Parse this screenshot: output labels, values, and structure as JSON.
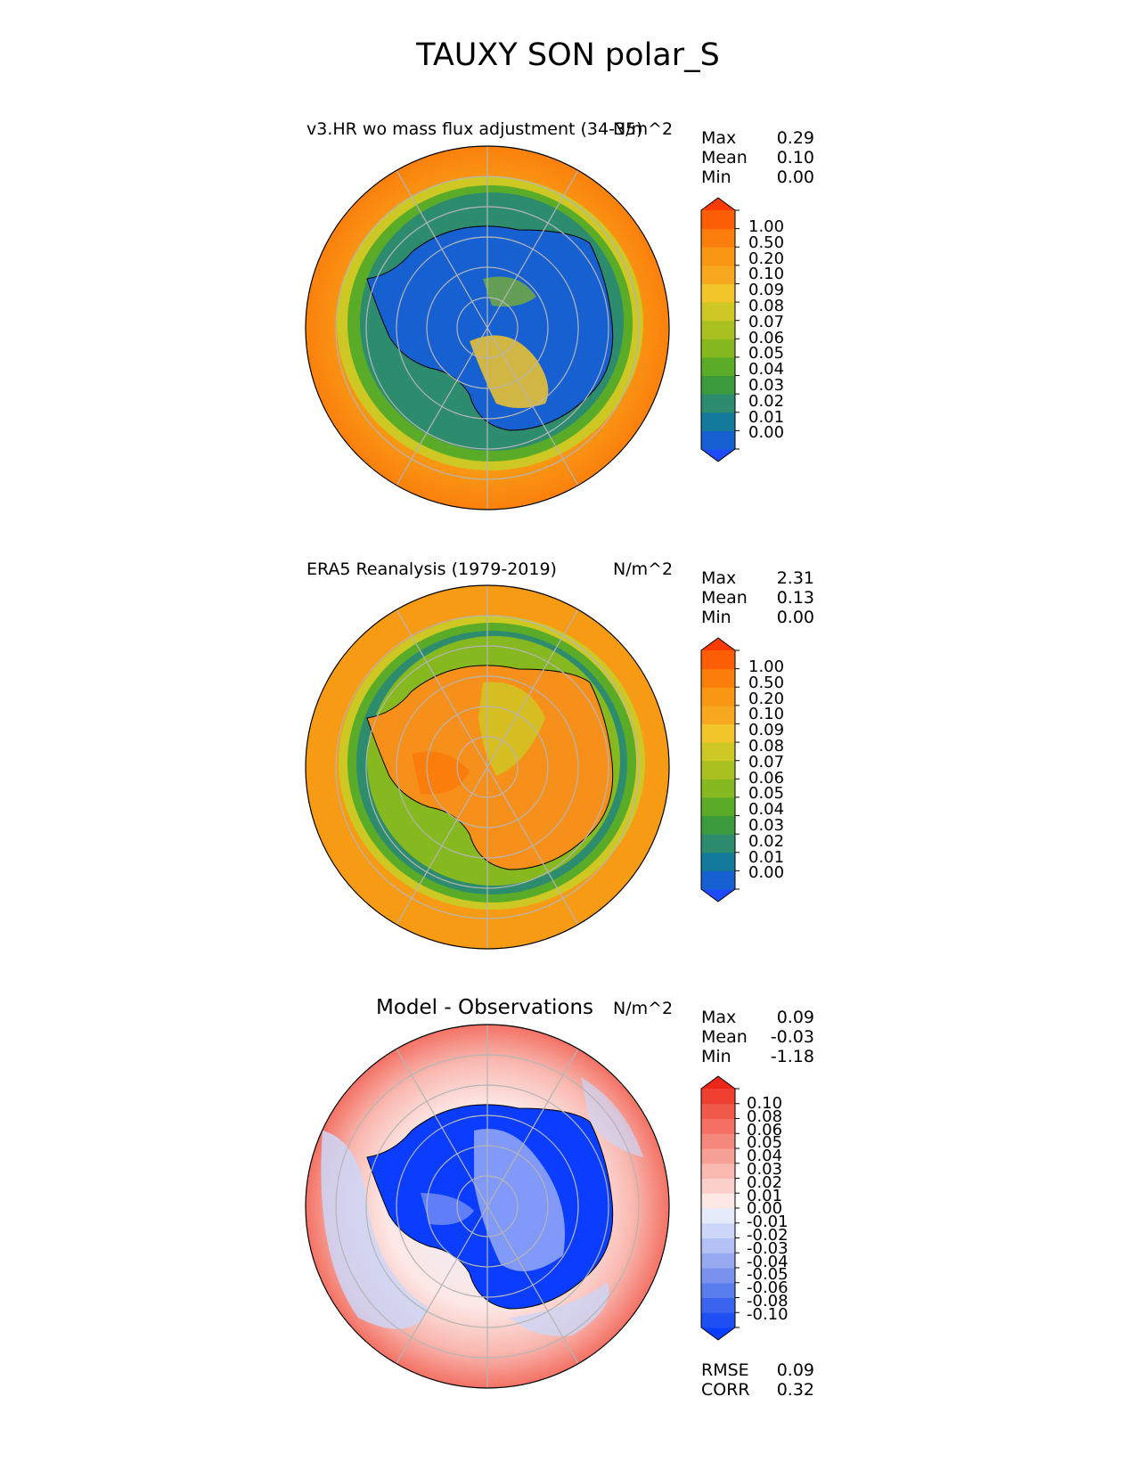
{
  "figure": {
    "title": "TAUXY SON polar_S"
  },
  "panels": [
    {
      "id": "test",
      "title": "v3.HR wo mass flux adjustment (34-35)",
      "units": "N/m^2",
      "stats": [
        {
          "label": "Max",
          "value": "0.29"
        },
        {
          "label": "Mean",
          "value": "0.10"
        },
        {
          "label": "Min",
          "value": "0.00"
        }
      ],
      "colorbar": {
        "ticks": [
          "1.00",
          "0.50",
          "0.20",
          "0.10",
          "0.09",
          "0.08",
          "0.07",
          "0.06",
          "0.05",
          "0.04",
          "0.03",
          "0.02",
          "0.01",
          "0.00"
        ],
        "colors": [
          "#1f4bff",
          "#1660d2",
          "#137a9c",
          "#2e8c6e",
          "#3b9a3b",
          "#5aab27",
          "#86b81f",
          "#a8c020",
          "#cdc823",
          "#f2c52a",
          "#f7a81f",
          "#f99613",
          "#fb7d0b",
          "#fc5e06",
          "#fd3a00"
        ]
      }
    },
    {
      "id": "ref",
      "title": "ERA5 Reanalysis (1979-2019)",
      "units": "N/m^2",
      "stats": [
        {
          "label": "Max",
          "value": "2.31"
        },
        {
          "label": "Mean",
          "value": "0.13"
        },
        {
          "label": "Min",
          "value": "0.00"
        }
      ],
      "colorbar": {
        "ticks": [
          "1.00",
          "0.50",
          "0.20",
          "0.10",
          "0.09",
          "0.08",
          "0.07",
          "0.06",
          "0.05",
          "0.04",
          "0.03",
          "0.02",
          "0.01",
          "0.00"
        ],
        "colors": [
          "#1f4bff",
          "#1660d2",
          "#137a9c",
          "#2e8c6e",
          "#3b9a3b",
          "#5aab27",
          "#86b81f",
          "#a8c020",
          "#cdc823",
          "#f2c52a",
          "#f7a81f",
          "#f99613",
          "#fb7d0b",
          "#fc5e06",
          "#fd3a00"
        ]
      }
    },
    {
      "id": "diff",
      "title": "Model - Observations",
      "units": "N/m^2",
      "stats": [
        {
          "label": "Max",
          "value": "0.09"
        },
        {
          "label": "Mean",
          "value": "-0.03"
        },
        {
          "label": "Min",
          "value": "-1.18"
        }
      ],
      "colorbar": {
        "ticks": [
          "0.10",
          "0.08",
          "0.06",
          "0.05",
          "0.04",
          "0.03",
          "0.02",
          "0.01",
          "0.00",
          "-0.01",
          "-0.02",
          "-0.03",
          "-0.04",
          "-0.05",
          "-0.06",
          "-0.08",
          "-0.10"
        ],
        "colors": [
          "#0a3dff",
          "#1e4ff2",
          "#3a63ee",
          "#5a7ded",
          "#7992ee",
          "#97aaf1",
          "#b3c1f5",
          "#ccd6f8",
          "#e6ebfb",
          "#fde8e6",
          "#fbd0cb",
          "#f9b8b0",
          "#f7a096",
          "#f5887c",
          "#f37063",
          "#f0584a",
          "#ee3f31",
          "#ec2618"
        ]
      },
      "metrics": [
        {
          "label": "RMSE",
          "value": "0.09"
        },
        {
          "label": "CORR",
          "value": "0.32"
        }
      ]
    }
  ]
}
